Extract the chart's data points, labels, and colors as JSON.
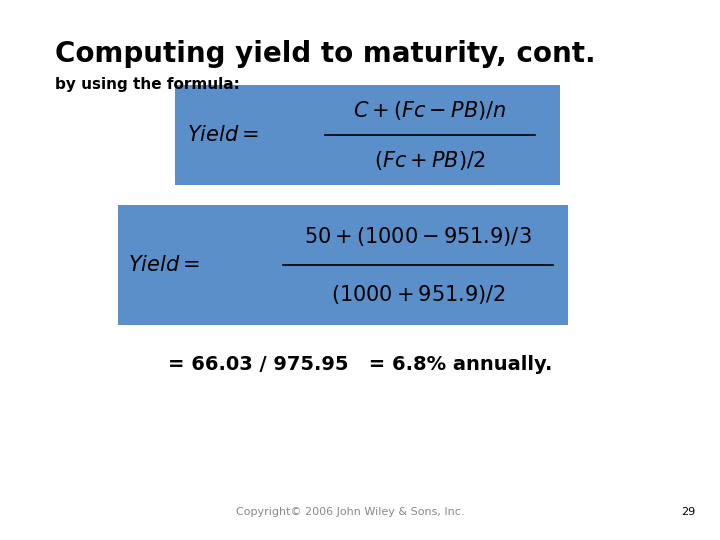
{
  "title": "Computing yield to maturity, cont.",
  "subtitle": "by using the formula:",
  "formula1_box_color": "#5b8fc9",
  "formula2_box_color": "#5b8fc9",
  "yield_label": "Yield =",
  "result_text": "= 66.03 / 975.95   = 6.8% annually.",
  "copyright_text": "Copyright© 2006 John Wiley & Sons, Inc.",
  "page_number": "29",
  "bg_color": "#ffffff",
  "title_fontsize": 20,
  "subtitle_fontsize": 11,
  "formula_fontsize": 15,
  "result_fontsize": 14,
  "copyright_fontsize": 8
}
